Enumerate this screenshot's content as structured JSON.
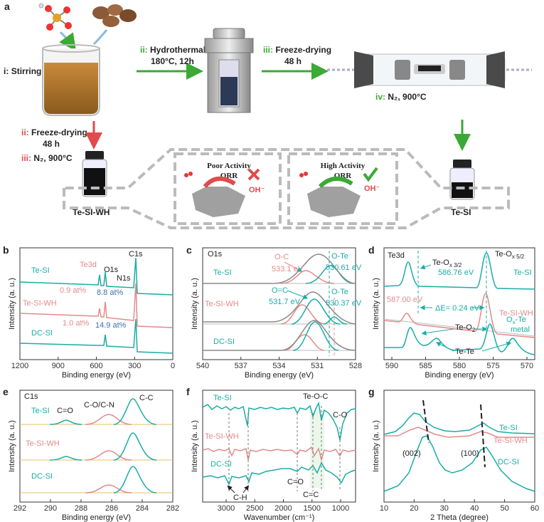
{
  "figure": {
    "panel_a": {
      "label": "a",
      "stirring": {
        "num": "i:",
        "text": "Stirring"
      },
      "hydrothermal": {
        "num": "ii:",
        "text": "Hydrothermal",
        "detail": "180°C, 12h"
      },
      "freeze_drying_top": {
        "num": "iii:",
        "text": "Freeze-drying",
        "detail": "48 h"
      },
      "pyrolysis_right": {
        "num": "iv:",
        "text": "N₂, 900°C"
      },
      "freeze_drying_left": {
        "num": "ii:",
        "text": "Freeze-drying",
        "detail": "48 h"
      },
      "pyrolysis_left": {
        "num": "iii:",
        "text": "N₂, 900°C"
      },
      "poor": {
        "title": "Poor Activity",
        "reaction": "ORR",
        "ion": "OH⁻"
      },
      "high": {
        "title": "High Activity",
        "reaction": "ORR",
        "ion": "OH⁻"
      },
      "sample_left": "Te-SI-WH",
      "sample_right": "Te-SI"
    },
    "panel_b": {
      "label": "b",
      "xlabel": "Binding energy (eV)",
      "ylabel": "Intensity (a. u.)",
      "xticks": [
        1200,
        900,
        600,
        300,
        0
      ],
      "series": [
        "Te-SI",
        "Te-SI-WH",
        "DC-SI"
      ],
      "annotations": {
        "te3d": "Te3d",
        "o1s": "O1s",
        "n1s": "N1s",
        "c1s": "C1s",
        "te_at": "0.9 at%",
        "o_at": "8.8 at%",
        "te_at_wh": "1.0 at%",
        "o_at_wh": "14.9 at%"
      }
    },
    "panel_c": {
      "label": "c",
      "xlabel": "Binding energy (eV)",
      "ylabel": "Intensity (a. u.)",
      "xticks": [
        540,
        537,
        534,
        531,
        528
      ],
      "series": [
        "Te-SI",
        "Te-SI-WH",
        "DC-SI"
      ],
      "annotations": {
        "o1s": "O1s",
        "oc": "O-C",
        "oc_ev": "533.1 eV",
        "ote": "O-Te",
        "ote_ev": "530.61 eV",
        "oc2": "O=C",
        "oc2_ev": "531.7 eV",
        "ote2": "O-Te",
        "ote2_ev": "530.37 eV"
      }
    },
    "panel_d": {
      "label": "d",
      "xlabel": "Binding energy (eV)",
      "ylabel": "Intensity (a. u.)",
      "xticks": [
        590,
        585,
        580,
        575,
        570
      ],
      "series": [
        "Te-SI",
        "Te-SI-WH"
      ],
      "annotations": {
        "te3d": "Te3d",
        "teox32": {
          "base": "Te-O",
          "sub": "x 3/2"
        },
        "ev1": "586.76 eV",
        "teox52": {
          "base": "Te-O",
          "sub": "x 5/2"
        },
        "ev2": "587.00 eV",
        "de": "ΔE= 0.24 eV",
        "teo2": {
          "base": "Te-O",
          "sub": "2"
        },
        "oxte": {
          "base": "O",
          "sub": "x",
          "rest": "-Te"
        },
        "metal": "metal",
        "tete": "Te-Te"
      }
    },
    "panel_e": {
      "label": "e",
      "xlabel": "Binding energy (eV)",
      "ylabel": "Intensity (a. u.)",
      "xticks": [
        292,
        290,
        288,
        286,
        284,
        282
      ],
      "series": [
        "Te-SI",
        "Te-SI-WH",
        "DC-SI"
      ],
      "annotations": {
        "c1s": "C1s",
        "co": "C=O",
        "coc": "C-O/C-N",
        "cc": "C-C"
      }
    },
    "panel_f": {
      "label": "f",
      "xlabel": "Wavenumber (cm⁻¹)",
      "ylabel": "Intensity (a. u.)",
      "xticks": [
        3000,
        2500,
        2000,
        1500,
        1000
      ],
      "series": [
        "Te-SI",
        "Te-SI-WH",
        "DC-SI"
      ],
      "annotations": {
        "teoc": "Te-O-C",
        "co": "C-O",
        "ch": "C-H",
        "co2": "C=O",
        "cc": "C=C"
      }
    },
    "panel_g": {
      "label": "g",
      "xlabel": "2 Theta (degree)",
      "ylabel": "Intensity (a. u.)",
      "xticks": [
        10,
        20,
        30,
        40,
        50,
        60
      ],
      "series": [
        "Te-SI",
        "Te-SI-WH",
        "DC-SI"
      ],
      "annotations": {
        "p002": "(002)",
        "p100": "(100)"
      }
    }
  }
}
